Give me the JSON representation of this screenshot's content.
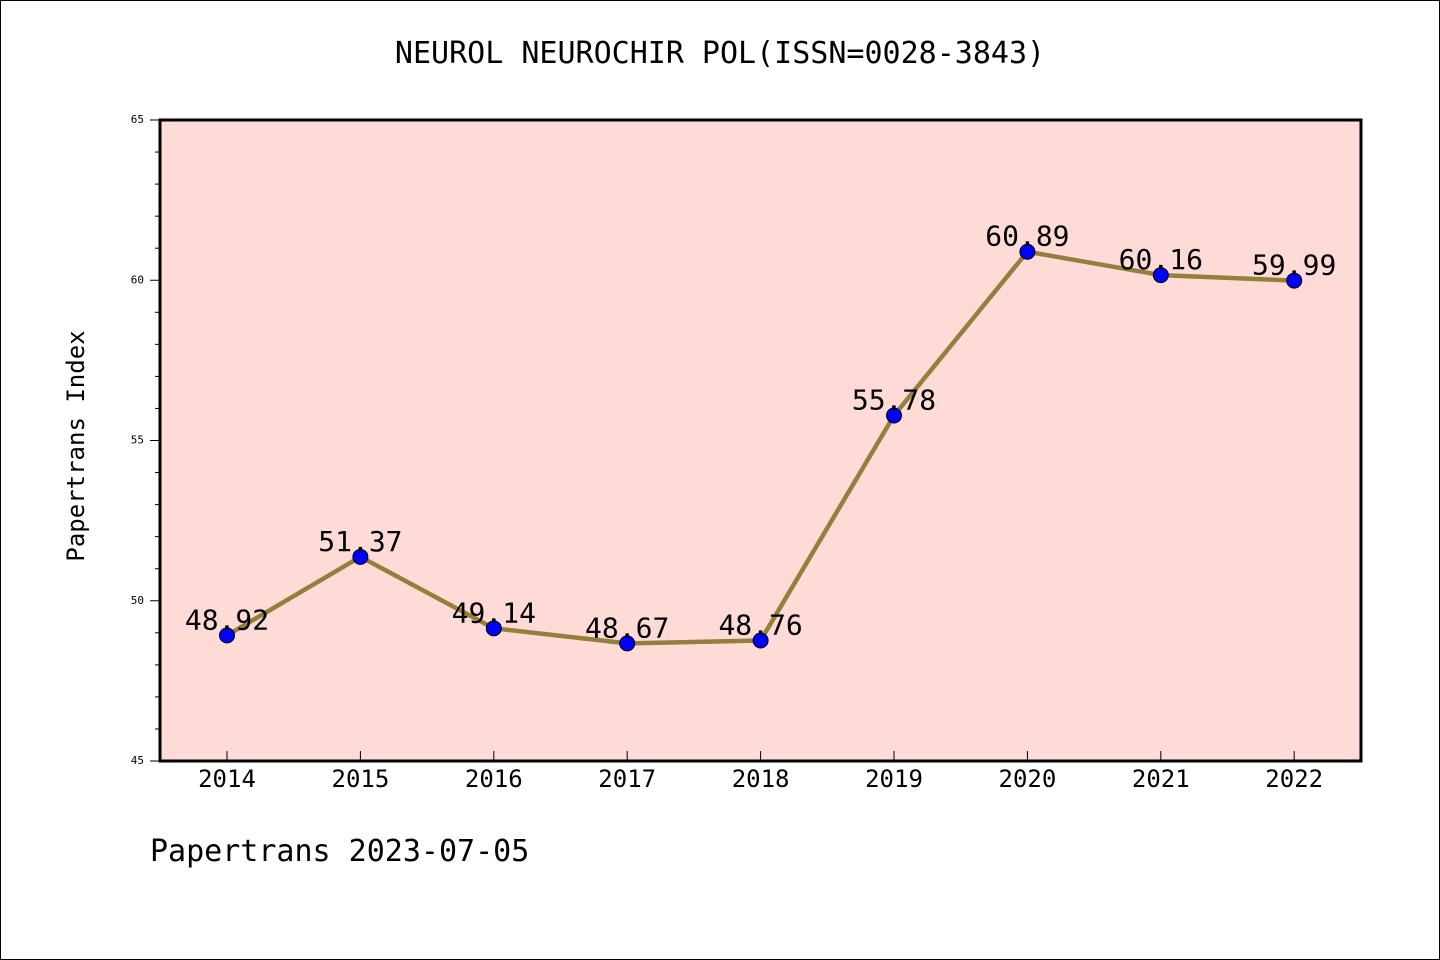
{
  "chart_data": {
    "type": "line",
    "title": "NEUROL NEUROCHIR POL(ISSN=0028-3843)",
    "xlabel": "",
    "ylabel": "Papertrans Index",
    "categories": [
      "2014",
      "2015",
      "2016",
      "2017",
      "2018",
      "2019",
      "2020",
      "2021",
      "2022"
    ],
    "series": [
      {
        "values": [
          48.92,
          51.37,
          49.14,
          48.67,
          48.76,
          55.78,
          60.89,
          60.16,
          59.99
        ],
        "labels": [
          "48.92",
          "51.37",
          "49.14",
          "48.67",
          "48.76",
          "55.78",
          "60.89",
          "60.16",
          "59.99"
        ]
      }
    ],
    "ylim": [
      45,
      65
    ],
    "yticks": [
      "45",
      "50",
      "55",
      "60",
      "65"
    ],
    "grid": false,
    "colors": {
      "plot_background": "#ffdbd8",
      "line": "#92803c",
      "marker": "#0000ff"
    }
  },
  "footer": "Papertrans 2023-07-05"
}
